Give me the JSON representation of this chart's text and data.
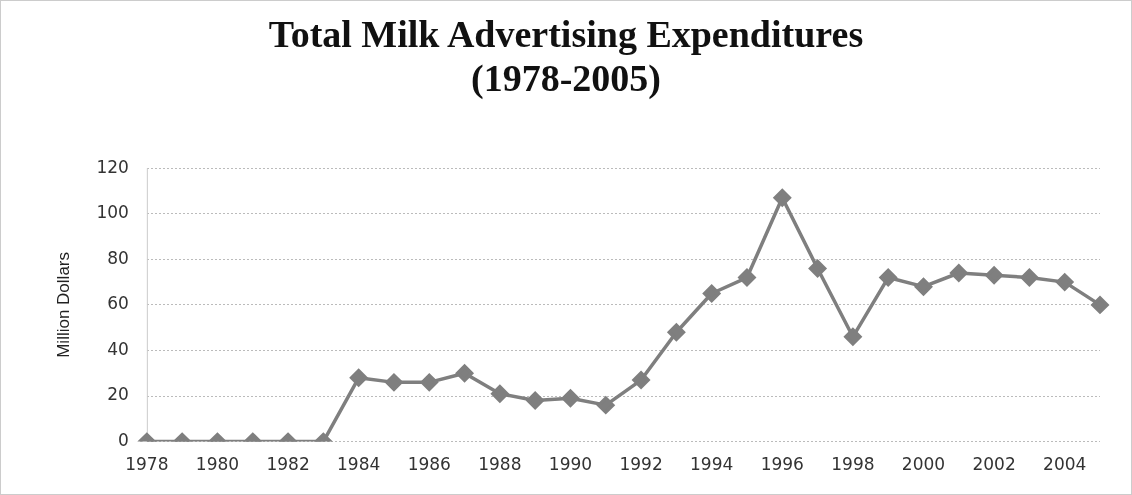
{
  "chart_data": {
    "type": "line",
    "title": "Total Milk Advertising Expenditures (1978-2005)",
    "ylabel": "Million Dollars",
    "categories": [
      "1978",
      null,
      "1980",
      null,
      "1982",
      null,
      "1984",
      null,
      "1986",
      null,
      "1988",
      null,
      "1990",
      null,
      "1992",
      null,
      "1994",
      null,
      "1996",
      null,
      "1998",
      null,
      "2000",
      null,
      "2002",
      null,
      "2004",
      null
    ],
    "series": [
      {
        "color": "#7f7f7f",
        "values": [
          0,
          0,
          0,
          0,
          0,
          0,
          28,
          26,
          26,
          30,
          21,
          18,
          19,
          16,
          27,
          48,
          65,
          72,
          107,
          76,
          46,
          72,
          68,
          74,
          73,
          72,
          70,
          60
        ]
      }
    ],
    "ylim": [
      0,
      120
    ],
    "yticks": [
      0,
      20,
      40,
      60,
      80,
      100,
      120
    ],
    "grid": "y",
    "legend": false,
    "marker": "diamond",
    "line_style": "solid"
  }
}
